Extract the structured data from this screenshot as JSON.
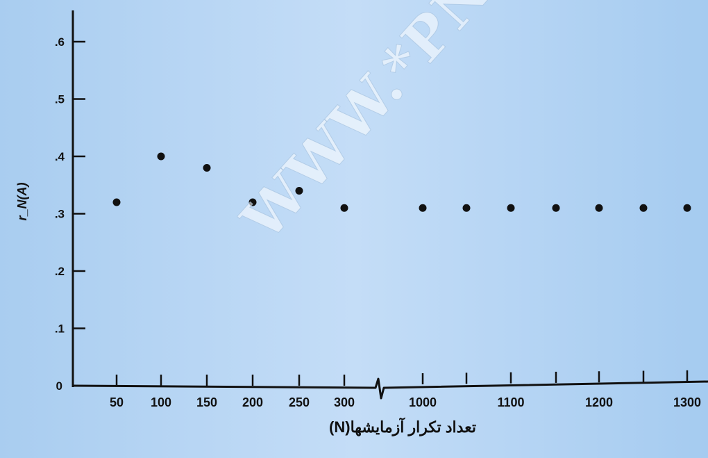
{
  "chart_data": {
    "type": "scatter",
    "title": "",
    "ylabel": "r_N(A)",
    "xlabel": "تعداد تکرار آزمایشها(N)",
    "categories": [
      "50",
      "100",
      "150",
      "200",
      "250",
      "300",
      "1000",
      "1050",
      "1100",
      "1150",
      "1200",
      "1250",
      "1300"
    ],
    "x": [
      50,
      100,
      150,
      200,
      250,
      300,
      1000,
      1050,
      1100,
      1150,
      1200,
      1250,
      1300
    ],
    "values": [
      0.32,
      0.4,
      0.38,
      0.32,
      0.34,
      0.31,
      0.31,
      0.31,
      0.31,
      0.31,
      0.31,
      0.31,
      0.31
    ],
    "x_tick_labels": [
      "50",
      "100",
      "150",
      "200",
      "250",
      "300",
      "1000",
      "",
      "1100",
      "",
      "1200",
      "",
      "1300"
    ],
    "y_ticks": [
      0,
      0.1,
      0.2,
      0.3,
      0.4,
      0.5,
      0.6
    ],
    "y_tick_labels": [
      "0",
      ".1",
      ".2",
      ".3",
      ".4",
      ".5",
      ".6"
    ],
    "ylim": [
      0,
      0.65
    ],
    "axis_break": "between 300 and 1000",
    "grid": false,
    "colors": {
      "points": "#111111",
      "axes": "#111111",
      "background": "#bcd7f4"
    }
  },
  "watermark": "WWW.*PNUEB*.COM"
}
